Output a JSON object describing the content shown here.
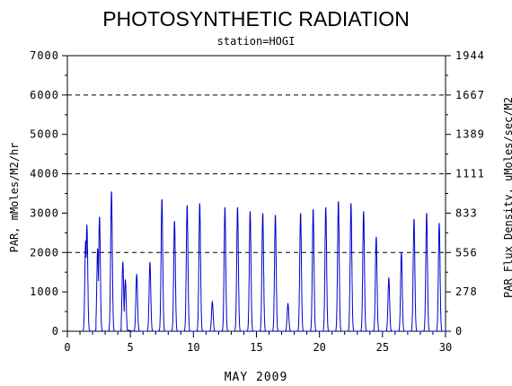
{
  "chart_data": {
    "type": "line",
    "title": "PHOTOSYNTHETIC RADIATION",
    "subtitle": "station=HOGI",
    "xlabel": "MAY 2009",
    "ylabel_left": "PAR, mMoles/M2/hr",
    "ylabel_right": "PAR Flux Density, uMoles/sec/M2",
    "xlim": [
      0,
      30
    ],
    "ylim": [
      0,
      7000
    ],
    "x_ticks": [
      "0",
      "5",
      "10",
      "15",
      "20",
      "25",
      "30"
    ],
    "y_ticks_left": [
      "0",
      "1000",
      "2000",
      "3000",
      "4000",
      "5000",
      "6000",
      "7000"
    ],
    "y_ticks_right": [
      "0",
      "278",
      "556",
      "833",
      "1111",
      "1389",
      "1667",
      "1944"
    ],
    "grid": "dashed horizontal at 2000, 4000, 6000",
    "line_color": "#0000cc",
    "series": [
      {
        "daily_peaks": [
          {
            "day": 1,
            "peaks": [
              [
                0.45,
                2300
              ],
              [
                0.55,
                2700
              ]
            ]
          },
          {
            "day": 2,
            "peaks": [
              [
                0.4,
                2100
              ],
              [
                0.55,
                2900
              ]
            ]
          },
          {
            "day": 3,
            "peaks": [
              [
                0.5,
                3550
              ]
            ]
          },
          {
            "day": 4,
            "peaks": [
              [
                0.4,
                1750
              ],
              [
                0.6,
                1300
              ]
            ]
          },
          {
            "day": 5,
            "peaks": [
              [
                0.5,
                1450
              ]
            ]
          },
          {
            "day": 6,
            "peaks": [
              [
                0.55,
                1750
              ]
            ]
          },
          {
            "day": 7,
            "peaks": [
              [
                0.5,
                3350
              ]
            ]
          },
          {
            "day": 8,
            "peaks": [
              [
                0.5,
                2800
              ]
            ]
          },
          {
            "day": 9,
            "peaks": [
              [
                0.5,
                3200
              ]
            ]
          },
          {
            "day": 10,
            "peaks": [
              [
                0.5,
                3250
              ]
            ]
          },
          {
            "day": 11,
            "peaks": [
              [
                0.5,
                750
              ]
            ]
          },
          {
            "day": 12,
            "peaks": [
              [
                0.5,
                3150
              ]
            ]
          },
          {
            "day": 13,
            "peaks": [
              [
                0.5,
                3150
              ]
            ]
          },
          {
            "day": 14,
            "peaks": [
              [
                0.5,
                3050
              ]
            ]
          },
          {
            "day": 15,
            "peaks": [
              [
                0.5,
                3000
              ]
            ]
          },
          {
            "day": 16,
            "peaks": [
              [
                0.5,
                2950
              ]
            ]
          },
          {
            "day": 17,
            "peaks": [
              [
                0.5,
                700
              ]
            ]
          },
          {
            "day": 18,
            "peaks": [
              [
                0.5,
                3000
              ]
            ]
          },
          {
            "day": 19,
            "peaks": [
              [
                0.5,
                3100
              ]
            ]
          },
          {
            "day": 20,
            "peaks": [
              [
                0.5,
                3150
              ]
            ]
          },
          {
            "day": 21,
            "peaks": [
              [
                0.5,
                3300
              ]
            ]
          },
          {
            "day": 22,
            "peaks": [
              [
                0.5,
                3250
              ]
            ]
          },
          {
            "day": 23,
            "peaks": [
              [
                0.5,
                3050
              ]
            ]
          },
          {
            "day": 24,
            "peaks": [
              [
                0.5,
                2400
              ]
            ]
          },
          {
            "day": 25,
            "peaks": [
              [
                0.5,
                1350
              ]
            ]
          },
          {
            "day": 26,
            "peaks": [
              [
                0.5,
                2000
              ]
            ]
          },
          {
            "day": 27,
            "peaks": [
              [
                0.5,
                2850
              ]
            ]
          },
          {
            "day": 28,
            "peaks": [
              [
                0.5,
                3000
              ]
            ]
          },
          {
            "day": 29,
            "peaks": [
              [
                0.5,
                2750
              ]
            ]
          }
        ]
      }
    ]
  }
}
